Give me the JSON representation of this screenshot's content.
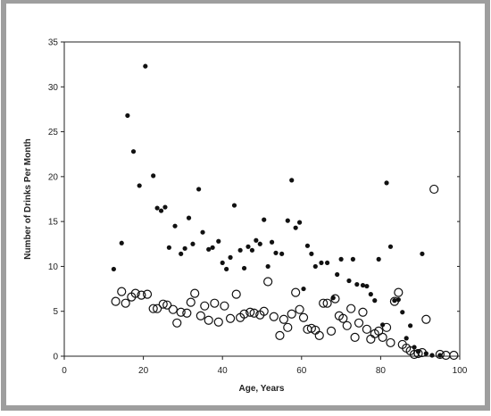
{
  "chart_data": {
    "type": "scatter",
    "title": "",
    "xlabel": "Age, Years",
    "ylabel": "Number of Drinks Per Month",
    "xlim": [
      0,
      100
    ],
    "ylim": [
      0,
      35
    ],
    "xticks": [
      0,
      20,
      40,
      60,
      80,
      100
    ],
    "yticks": [
      0,
      5,
      10,
      15,
      20,
      25,
      30,
      35
    ],
    "grid": false,
    "legend": "none",
    "colors": {
      "frame_gray": "#9e9e9e",
      "marker": "#111111",
      "axis": "#222222"
    },
    "series": [
      {
        "marker": "filled",
        "points": [
          [
            12.5,
            9.7
          ],
          [
            14.5,
            12.6
          ],
          [
            16,
            26.8
          ],
          [
            17.5,
            22.8
          ],
          [
            19,
            19.0
          ],
          [
            20.5,
            32.3
          ],
          [
            22.5,
            20.1
          ],
          [
            23.5,
            16.5
          ],
          [
            24.5,
            16.2
          ],
          [
            25.5,
            16.6
          ],
          [
            26.5,
            12.1
          ],
          [
            28,
            14.5
          ],
          [
            29.5,
            11.4
          ],
          [
            30.5,
            12.0
          ],
          [
            31.5,
            15.4
          ],
          [
            32.5,
            12.5
          ],
          [
            34,
            18.6
          ],
          [
            35,
            13.8
          ],
          [
            36.5,
            11.9
          ],
          [
            37.5,
            12.1
          ],
          [
            39,
            12.8
          ],
          [
            40,
            10.4
          ],
          [
            41,
            9.7
          ],
          [
            42,
            11.0
          ],
          [
            43,
            16.8
          ],
          [
            44.5,
            11.8
          ],
          [
            45.5,
            9.8
          ],
          [
            46.5,
            12.2
          ],
          [
            47.5,
            11.8
          ],
          [
            48.5,
            12.9
          ],
          [
            49.5,
            12.5
          ],
          [
            50.5,
            15.2
          ],
          [
            51.5,
            10.0
          ],
          [
            52.5,
            12.7
          ],
          [
            53.5,
            11.5
          ],
          [
            55,
            11.4
          ],
          [
            56.5,
            15.1
          ],
          [
            57.5,
            19.6
          ],
          [
            58.5,
            14.3
          ],
          [
            59.5,
            14.9
          ],
          [
            60.5,
            7.5
          ],
          [
            61.5,
            12.3
          ],
          [
            62.5,
            11.4
          ],
          [
            63.5,
            10.0
          ],
          [
            65,
            10.4
          ],
          [
            66.5,
            10.4
          ],
          [
            68,
            6.5
          ],
          [
            69,
            9.1
          ],
          [
            70,
            10.8
          ],
          [
            72,
            8.4
          ],
          [
            73,
            10.8
          ],
          [
            74,
            8.0
          ],
          [
            75.5,
            7.9
          ],
          [
            76.5,
            7.8
          ],
          [
            77.5,
            6.9
          ],
          [
            78.5,
            6.2
          ],
          [
            79.5,
            10.8
          ],
          [
            80.5,
            3.5
          ],
          [
            81.5,
            19.3
          ],
          [
            82.5,
            12.2
          ],
          [
            83.5,
            6.2
          ],
          [
            84.5,
            6.3
          ],
          [
            85.5,
            4.9
          ],
          [
            86.5,
            2.0
          ],
          [
            87.5,
            3.4
          ],
          [
            88.5,
            1.0
          ],
          [
            89.5,
            0.5
          ],
          [
            90.5,
            11.4
          ],
          [
            91.5,
            0.3
          ],
          [
            93,
            0.1
          ],
          [
            95,
            0.1
          ]
        ]
      },
      {
        "marker": "open",
        "points": [
          [
            13,
            6.1
          ],
          [
            14.5,
            7.2
          ],
          [
            15.5,
            5.9
          ],
          [
            17,
            6.6
          ],
          [
            18,
            7.0
          ],
          [
            19.5,
            6.8
          ],
          [
            21,
            6.9
          ],
          [
            22.5,
            5.3
          ],
          [
            23.5,
            5.3
          ],
          [
            25,
            5.8
          ],
          [
            26,
            5.7
          ],
          [
            27.5,
            5.2
          ],
          [
            28.5,
            3.7
          ],
          [
            29.5,
            4.9
          ],
          [
            31,
            4.8
          ],
          [
            32,
            6.0
          ],
          [
            33,
            7.0
          ],
          [
            34.5,
            4.5
          ],
          [
            35.5,
            5.6
          ],
          [
            36.5,
            4.0
          ],
          [
            38,
            5.9
          ],
          [
            39,
            3.8
          ],
          [
            40.5,
            5.6
          ],
          [
            42,
            4.2
          ],
          [
            43.5,
            6.9
          ],
          [
            44.5,
            4.3
          ],
          [
            45.5,
            4.7
          ],
          [
            47,
            4.9
          ],
          [
            48,
            4.8
          ],
          [
            49.5,
            4.6
          ],
          [
            50.5,
            5.0
          ],
          [
            51.5,
            8.3
          ],
          [
            53,
            4.4
          ],
          [
            54.5,
            2.3
          ],
          [
            55.5,
            4.1
          ],
          [
            56.5,
            3.2
          ],
          [
            57.5,
            4.7
          ],
          [
            58.5,
            7.1
          ],
          [
            59.5,
            5.2
          ],
          [
            60.5,
            4.3
          ],
          [
            61.5,
            3.0
          ],
          [
            62.5,
            3.1
          ],
          [
            63.5,
            2.9
          ],
          [
            64.5,
            2.3
          ],
          [
            65.5,
            5.9
          ],
          [
            66.5,
            5.9
          ],
          [
            67.5,
            2.8
          ],
          [
            68.5,
            6.4
          ],
          [
            69.5,
            4.5
          ],
          [
            70.5,
            4.2
          ],
          [
            71.5,
            3.4
          ],
          [
            72.5,
            5.3
          ],
          [
            73.5,
            2.1
          ],
          [
            74.5,
            3.7
          ],
          [
            75.5,
            4.9
          ],
          [
            76.5,
            3.0
          ],
          [
            77.5,
            1.9
          ],
          [
            78.5,
            2.5
          ],
          [
            79.5,
            2.8
          ],
          [
            80.5,
            2.1
          ],
          [
            81.5,
            3.2
          ],
          [
            82.5,
            1.5
          ],
          [
            83.5,
            6.1
          ],
          [
            84.5,
            7.1
          ],
          [
            85.5,
            1.3
          ],
          [
            86.5,
            0.9
          ],
          [
            87.5,
            0.6
          ],
          [
            88.5,
            0.2
          ],
          [
            89.5,
            0.3
          ],
          [
            90.5,
            0.4
          ],
          [
            91.5,
            4.1
          ],
          [
            93.5,
            18.6
          ],
          [
            95,
            0.2
          ],
          [
            96.5,
            0.1
          ],
          [
            98.5,
            0.1
          ]
        ]
      }
    ]
  }
}
